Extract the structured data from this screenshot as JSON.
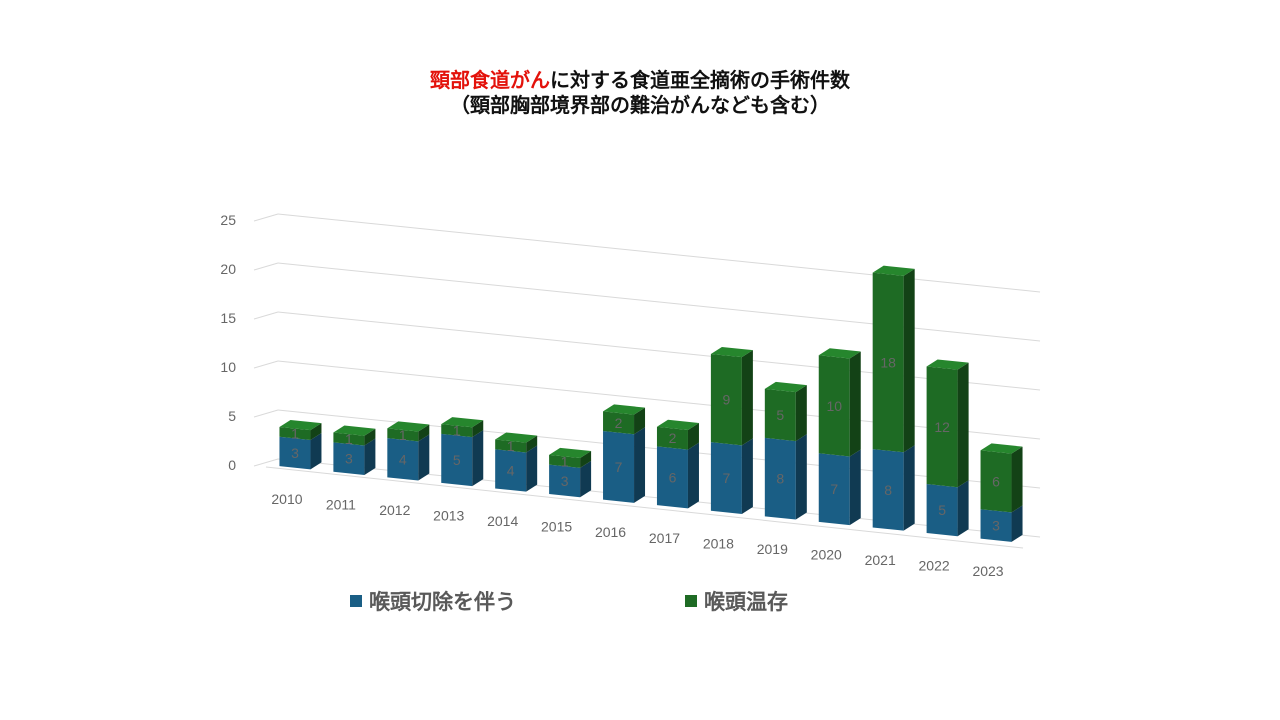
{
  "title": {
    "highlight": "頸部食道がん",
    "rest": "に対する食道亜全摘術の手術件数",
    "subtitle": "（頸部胸部境界部の難治がんなども含む）",
    "highlight_color": "#e3120b"
  },
  "chart_data": {
    "type": "bar",
    "stacked": true,
    "style": "3d",
    "categories": [
      "2010",
      "2011",
      "2012",
      "2013",
      "2014",
      "2015",
      "2016",
      "2017",
      "2018",
      "2019",
      "2020",
      "2021",
      "2022",
      "2023"
    ],
    "series": [
      {
        "name": "喉頭切除を伴う",
        "color": "#1a5e85",
        "values": [
          3,
          3,
          4,
          5,
          4,
          3,
          7,
          6,
          7,
          8,
          7,
          8,
          5,
          3
        ]
      },
      {
        "name": "喉頭温存",
        "color": "#1e6b24",
        "values": [
          1,
          1,
          1,
          1,
          1,
          1,
          2,
          2,
          9,
          5,
          10,
          18,
          12,
          6
        ]
      }
    ],
    "ylim": [
      0,
      25
    ],
    "yticks": [
      "0",
      "5",
      "10",
      "15",
      "20",
      "25"
    ],
    "grid": true,
    "legend": "bottom"
  }
}
